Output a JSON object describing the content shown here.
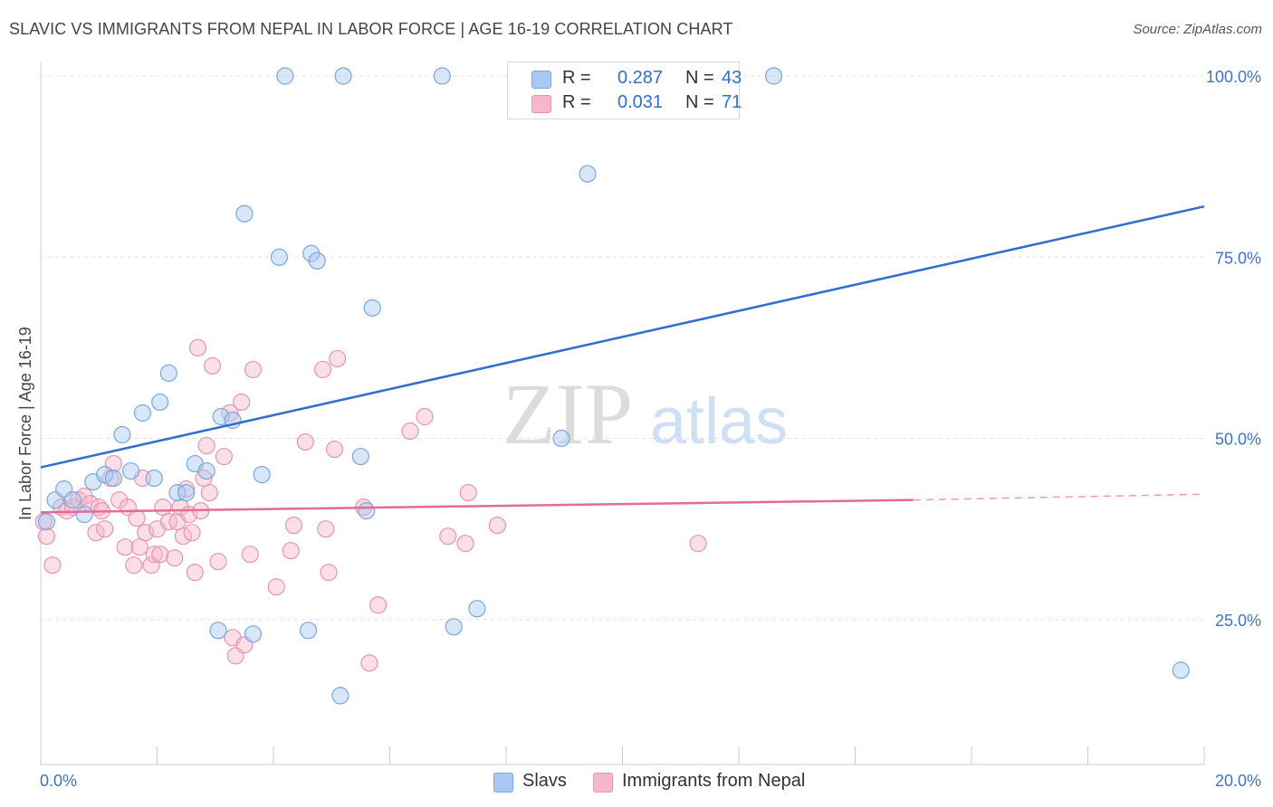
{
  "title": "SLAVIC VS IMMIGRANTS FROM NEPAL IN LABOR FORCE | AGE 16-19 CORRELATION CHART",
  "source": "Source: ZipAtlas.com",
  "watermark": {
    "zip": "ZIP",
    "atlas": "atlas"
  },
  "legend": {
    "rows": [
      {
        "r_label": "R =",
        "r_value": "0.287",
        "n_label": "N =",
        "n_value": "43",
        "color": "#a9c8f2"
      },
      {
        "r_label": "R =",
        "r_value": "0.031",
        "n_label": "N =",
        "n_value": "71",
        "color": "#f5b8cb"
      }
    ]
  },
  "bottom_legend": [
    {
      "label": "Slavs",
      "color": "#a9c8f2"
    },
    {
      "label": "Immigrants from Nepal",
      "color": "#f5b8cb"
    }
  ],
  "chart_data": {
    "type": "scatter",
    "xlabel": "",
    "ylabel": "In Labor Force | Age 16-19",
    "xlim": [
      0,
      20
    ],
    "ylim": [
      5,
      102
    ],
    "x_tick_labels": [
      "0.0%",
      "20.0%"
    ],
    "y_tick_labels": [
      "25.0%",
      "50.0%",
      "75.0%",
      "100.0%"
    ],
    "y_ticks": [
      25,
      50,
      75,
      100
    ],
    "grid": true,
    "series": [
      {
        "name": "Slavs",
        "color": "#a9c8f2",
        "stroke": "#7aa7e0",
        "trend_color": "#2e6fd0",
        "trend": {
          "x": [
            0,
            20
          ],
          "y": [
            46,
            82
          ]
        },
        "points": [
          [
            0.1,
            38.5
          ],
          [
            0.25,
            41.5
          ],
          [
            0.4,
            43
          ],
          [
            0.55,
            41.5
          ],
          [
            0.75,
            39.5
          ],
          [
            0.9,
            44
          ],
          [
            1.1,
            45
          ],
          [
            1.25,
            44.5
          ],
          [
            1.4,
            50.5
          ],
          [
            1.55,
            45.5
          ],
          [
            1.75,
            53.5
          ],
          [
            1.95,
            44.5
          ],
          [
            2.05,
            55
          ],
          [
            2.2,
            59
          ],
          [
            2.35,
            42.5
          ],
          [
            2.5,
            42.5
          ],
          [
            2.65,
            46.5
          ],
          [
            2.85,
            45.5
          ],
          [
            3.05,
            23.5
          ],
          [
            3.1,
            53
          ],
          [
            3.3,
            52.5
          ],
          [
            3.5,
            81
          ],
          [
            3.65,
            23
          ],
          [
            3.8,
            45
          ],
          [
            4.2,
            100
          ],
          [
            4.1,
            75
          ],
          [
            4.6,
            23.5
          ],
          [
            4.65,
            75.5
          ],
          [
            4.75,
            74.5
          ],
          [
            5.15,
            14.5
          ],
          [
            5.2,
            100
          ],
          [
            5.5,
            47.5
          ],
          [
            5.6,
            40
          ],
          [
            5.7,
            68
          ],
          [
            6.9,
            100
          ],
          [
            7.1,
            24
          ],
          [
            7.5,
            26.5
          ],
          [
            8.45,
            100
          ],
          [
            8.95,
            50
          ],
          [
            9.4,
            86.5
          ],
          [
            10.1,
            100
          ],
          [
            12.6,
            100
          ],
          [
            19.6,
            18
          ]
        ]
      },
      {
        "name": "Immigrants from Nepal",
        "color": "#f5b8cb",
        "stroke": "#e795b0",
        "trend_color": "#e46c93",
        "trend": {
          "x": [
            0,
            15
          ],
          "y": [
            39.8,
            41.5
          ]
        },
        "trend_dashed": {
          "x": [
            15,
            20
          ],
          "y": [
            41.5,
            42.3
          ]
        },
        "points": [
          [
            0.05,
            38.5
          ],
          [
            0.1,
            36.5
          ],
          [
            0.2,
            32.5
          ],
          [
            0.35,
            40.5
          ],
          [
            0.45,
            40
          ],
          [
            0.55,
            40.5
          ],
          [
            0.65,
            41.5
          ],
          [
            0.75,
            42
          ],
          [
            0.85,
            41
          ],
          [
            0.95,
            37
          ],
          [
            1.0,
            40.5
          ],
          [
            1.05,
            40
          ],
          [
            1.1,
            37.5
          ],
          [
            1.2,
            44.5
          ],
          [
            1.25,
            46.5
          ],
          [
            1.35,
            41.5
          ],
          [
            1.45,
            35
          ],
          [
            1.5,
            40.5
          ],
          [
            1.6,
            32.5
          ],
          [
            1.65,
            39
          ],
          [
            1.7,
            35
          ],
          [
            1.75,
            44.5
          ],
          [
            1.8,
            37
          ],
          [
            1.9,
            32.5
          ],
          [
            1.95,
            34
          ],
          [
            2.0,
            37.5
          ],
          [
            2.05,
            34
          ],
          [
            2.1,
            40.5
          ],
          [
            2.2,
            38.5
          ],
          [
            2.3,
            33.5
          ],
          [
            2.35,
            38.5
          ],
          [
            2.4,
            40.5
          ],
          [
            2.45,
            36.5
          ],
          [
            2.5,
            43
          ],
          [
            2.55,
            39.5
          ],
          [
            2.6,
            37
          ],
          [
            2.65,
            31.5
          ],
          [
            2.7,
            62.5
          ],
          [
            2.75,
            40
          ],
          [
            2.8,
            44.5
          ],
          [
            2.85,
            49
          ],
          [
            2.9,
            42.5
          ],
          [
            2.95,
            60
          ],
          [
            3.05,
            33
          ],
          [
            3.15,
            47.5
          ],
          [
            3.25,
            53.5
          ],
          [
            3.3,
            22.5
          ],
          [
            3.35,
            20
          ],
          [
            3.45,
            55
          ],
          [
            3.5,
            21.5
          ],
          [
            3.6,
            34
          ],
          [
            3.65,
            59.5
          ],
          [
            4.05,
            29.5
          ],
          [
            4.3,
            34.5
          ],
          [
            4.35,
            38
          ],
          [
            4.55,
            49.5
          ],
          [
            4.85,
            59.5
          ],
          [
            4.9,
            37.5
          ],
          [
            4.95,
            31.5
          ],
          [
            5.05,
            48.5
          ],
          [
            5.1,
            61
          ],
          [
            5.55,
            40.5
          ],
          [
            5.65,
            19
          ],
          [
            5.8,
            27
          ],
          [
            6.35,
            51
          ],
          [
            6.6,
            53
          ],
          [
            7.0,
            36.5
          ],
          [
            7.3,
            35.5
          ],
          [
            7.35,
            42.5
          ],
          [
            7.85,
            38
          ],
          [
            11.3,
            35.5
          ]
        ]
      }
    ]
  }
}
